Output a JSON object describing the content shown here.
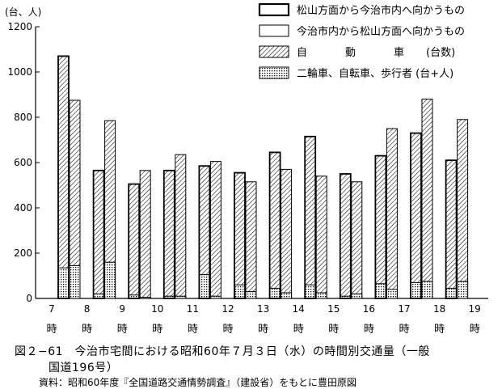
{
  "chart_data": {
    "type": "bar",
    "unit_label": "(台、人)",
    "y_ticks": [
      0,
      200,
      400,
      600,
      800,
      1000,
      1200
    ],
    "ylim": [
      0,
      1200
    ],
    "hour_ticks": [
      "7",
      "8",
      "9",
      "10",
      "11",
      "12",
      "13",
      "14",
      "15",
      "16",
      "17",
      "18",
      "19"
    ],
    "hour_suffix": "時",
    "categories": [
      "7-8",
      "8-9",
      "9-10",
      "10-11",
      "11-12",
      "12-13",
      "13-14",
      "14-15",
      "15-16",
      "16-17",
      "17-18",
      "18-19"
    ],
    "series": [
      {
        "name": "松山方面から今治市内へ向かうもの",
        "cars": [
          1070,
          565,
          505,
          565,
          585,
          555,
          645,
          715,
          550,
          630,
          730,
          610
        ],
        "others": [
          135,
          20,
          15,
          10,
          105,
          60,
          45,
          60,
          10,
          65,
          70,
          45
        ]
      },
      {
        "name": "今治市内から松山方面へ向かうもの",
        "cars": [
          875,
          785,
          565,
          635,
          605,
          515,
          570,
          540,
          515,
          750,
          880,
          790
        ],
        "others": [
          145,
          160,
          5,
          10,
          10,
          30,
          25,
          25,
          20,
          40,
          75,
          75
        ]
      }
    ],
    "legend": [
      {
        "key": "outbound_in",
        "label": "松山方面から今治市内へ向かうもの"
      },
      {
        "key": "inbound_out",
        "label": "今治市内から松山方面へ向かうもの"
      },
      {
        "key": "cars",
        "label_chars": [
          "自",
          "動",
          "車"
        ],
        "label_suffix": "(台数)"
      },
      {
        "key": "others",
        "label": "二輪車、自転車、歩行者 (台+人)"
      }
    ]
  },
  "caption": {
    "line1": "図２−61　今治市宅間における昭和60年７月３日（水）の時間別交通量（一般",
    "line2": "国道196号）"
  },
  "source": "資料：昭和60年度『全国道路交通情勢調査』（建設省）をもとに豊田原図"
}
